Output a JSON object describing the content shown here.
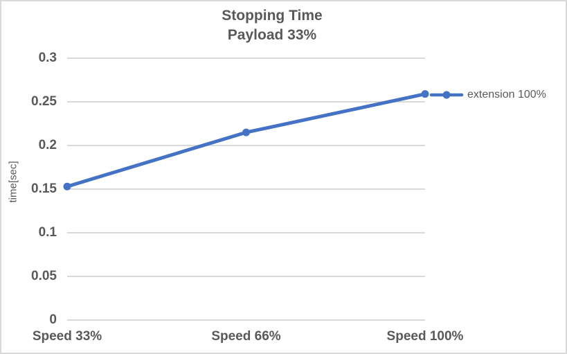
{
  "window": {
    "background": "#ffffff",
    "border_color": "#d9d9d9"
  },
  "chart_data": {
    "type": "line",
    "title": "Stopping Time",
    "subtitle": "Payload 33%",
    "ylabel": "time[sec]",
    "xlabel": "",
    "categories": [
      "Speed 33%",
      "Speed 66%",
      "Speed 100%"
    ],
    "series": [
      {
        "name": "extension 100%",
        "color": "#4472C4",
        "marker": "circle",
        "values": [
          0.153,
          0.215,
          0.259
        ]
      }
    ],
    "ylim": [
      0,
      0.3
    ],
    "yticks": [
      0,
      0.05,
      0.1,
      0.15,
      0.2,
      0.25,
      0.3
    ],
    "ytick_labels": [
      "0",
      "0.05",
      "0.1",
      "0.15",
      "0.2",
      "0.25",
      "0.3"
    ],
    "grid": "horizontal",
    "gridline_color": "#d9d9d9",
    "axis_text_color": "#595959",
    "legend_position": "right"
  }
}
